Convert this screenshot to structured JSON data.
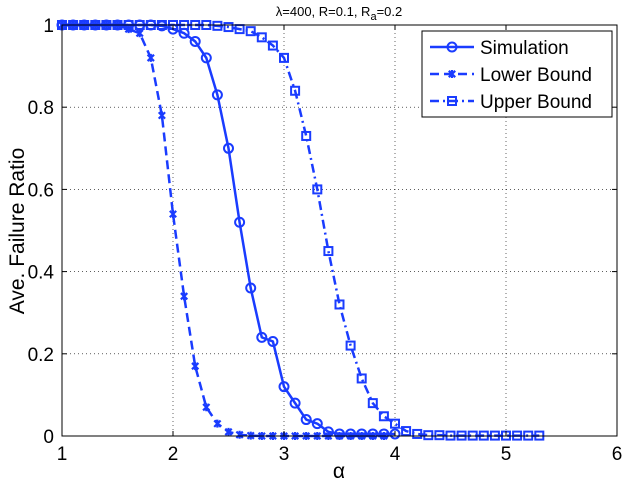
{
  "chart_data": {
    "type": "line",
    "title_parts": {
      "lambda_symbol": "λ",
      "pre": "=400, R=0.1,  R",
      "sub": "a",
      "post": "=0.2"
    },
    "xlabel": "α",
    "ylabel": "Ave. Failure Ratio",
    "xlim": [
      1,
      6
    ],
    "ylim": [
      0,
      1
    ],
    "xticks": [
      1,
      2,
      3,
      4,
      5,
      6
    ],
    "yticks": [
      0,
      0.2,
      0.4,
      0.6,
      0.8,
      1
    ],
    "xtick_labels": [
      "1",
      "2",
      "3",
      "4",
      "5",
      "6"
    ],
    "ytick_labels": [
      "0",
      "0.2",
      "0.4",
      "0.6",
      "0.8",
      "1"
    ],
    "grid": "dotted",
    "legend_position": "top-right",
    "color": "#1a3cff",
    "series": [
      {
        "name": "Simulation",
        "line": "solid",
        "marker": "circle",
        "x": [
          1,
          1.1,
          1.2,
          1.3,
          1.4,
          1.5,
          1.6,
          1.7,
          1.8,
          1.9,
          2.0,
          2.1,
          2.2,
          2.3,
          2.4,
          2.5,
          2.6,
          2.7,
          2.8,
          2.9,
          3.0,
          3.1,
          3.2,
          3.3,
          3.4,
          3.5,
          3.6,
          3.7,
          3.8,
          3.9,
          4.0
        ],
        "y": [
          1,
          1,
          1,
          1,
          1,
          1,
          1,
          1,
          1,
          0.998,
          0.99,
          0.98,
          0.96,
          0.92,
          0.83,
          0.7,
          0.52,
          0.36,
          0.24,
          0.23,
          0.12,
          0.08,
          0.04,
          0.03,
          0.01,
          0.005,
          0.005,
          0.005,
          0.005,
          0.005,
          0.005
        ]
      },
      {
        "name": "Lower Bound",
        "line": "dashed",
        "marker": "star",
        "x": [
          1,
          1.1,
          1.2,
          1.3,
          1.4,
          1.5,
          1.6,
          1.7,
          1.8,
          1.9,
          2.0,
          2.1,
          2.2,
          2.3,
          2.4,
          2.5,
          2.6,
          2.7,
          2.8,
          2.9,
          3.0,
          3.1,
          3.2,
          3.3,
          3.4,
          3.5,
          3.6,
          3.7,
          3.8,
          3.9
        ],
        "y": [
          1,
          1,
          1,
          1,
          1,
          1,
          0.99,
          0.98,
          0.92,
          0.78,
          0.54,
          0.34,
          0.17,
          0.07,
          0.03,
          0.01,
          0.003,
          0.001,
          0,
          0,
          0,
          0,
          0,
          0,
          0,
          0,
          0,
          0,
          0,
          0
        ]
      },
      {
        "name": "Upper Bound",
        "line": "dashdot",
        "marker": "square",
        "x": [
          1,
          1.1,
          1.2,
          1.3,
          1.4,
          1.5,
          1.6,
          1.7,
          1.8,
          1.9,
          2.0,
          2.1,
          2.2,
          2.3,
          2.4,
          2.5,
          2.6,
          2.7,
          2.8,
          2.9,
          3.0,
          3.1,
          3.2,
          3.3,
          3.4,
          3.5,
          3.6,
          3.7,
          3.8,
          3.9,
          4.0,
          4.1,
          4.2,
          4.3,
          4.4,
          4.5,
          4.6,
          4.7,
          4.8,
          4.9,
          5.0,
          5.1,
          5.2,
          5.3
        ],
        "y": [
          1,
          1,
          1,
          1,
          1,
          1,
          1,
          1,
          1,
          1,
          1,
          1,
          1,
          1,
          0.998,
          0.995,
          0.99,
          0.985,
          0.97,
          0.95,
          0.92,
          0.84,
          0.73,
          0.6,
          0.45,
          0.32,
          0.22,
          0.14,
          0.08,
          0.048,
          0.03,
          0.012,
          0.005,
          0.002,
          0.002,
          0.001,
          0.001,
          0.001,
          0.001,
          0.001,
          0.001,
          0.001,
          0.001,
          0.001
        ]
      }
    ]
  }
}
